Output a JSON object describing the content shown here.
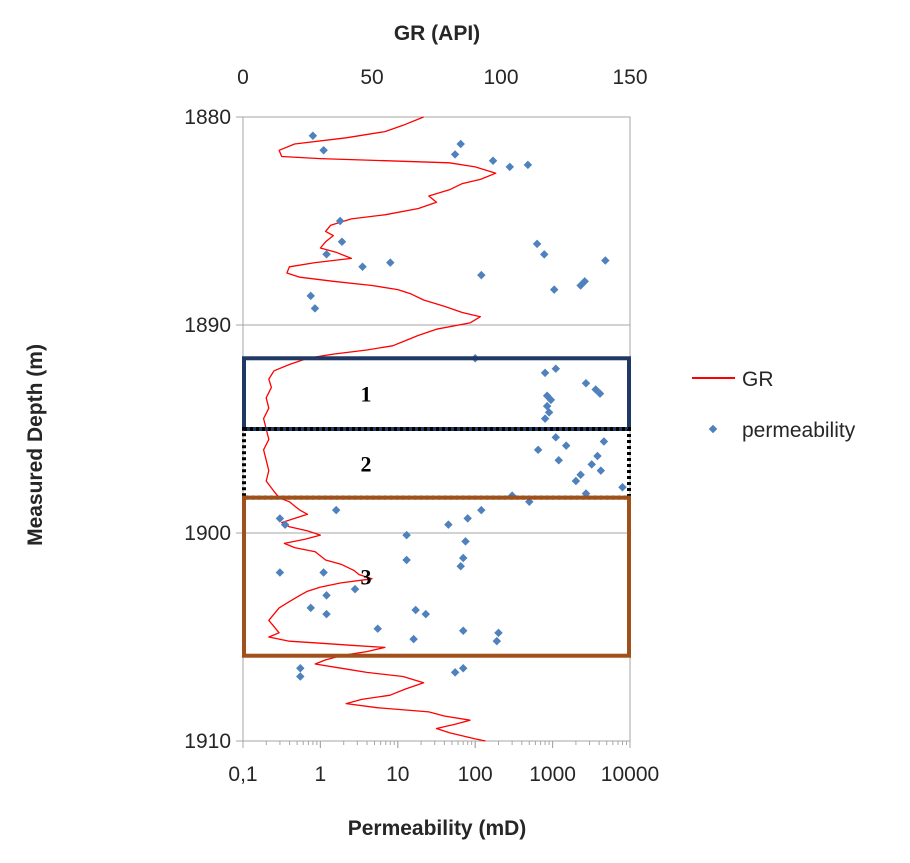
{
  "chart_data": {
    "type": "scatter",
    "title": "",
    "top_axis": {
      "label": "GR (API)",
      "ticks": [
        "0",
        "50",
        "100",
        "150"
      ],
      "range": [
        0,
        150
      ]
    },
    "bottom_axis": {
      "label": "Permeability (mD)",
      "scale": "log",
      "ticks": [
        "0,1",
        "1",
        "10",
        "100",
        "1000",
        "10000"
      ],
      "range": [
        0.1,
        10000
      ]
    },
    "y_axis": {
      "label": "Measured Depth (m)",
      "ticks": [
        "1880",
        "1890",
        "1900",
        "1910"
      ],
      "range": [
        1880,
        1910
      ],
      "inverted": true
    },
    "gridlines": "horizontal",
    "legend": {
      "position": "right",
      "items": [
        {
          "name": "GR",
          "color": "#ff0000",
          "marker": "line"
        },
        {
          "name": "permeability",
          "color": "#4f81bd",
          "marker": "diamond"
        }
      ]
    },
    "series": [
      {
        "name": "GR",
        "x_axis": "top",
        "color": "#ff0000",
        "points": [
          [
            70,
            1880.0
          ],
          [
            62,
            1880.4
          ],
          [
            55,
            1880.7
          ],
          [
            40,
            1881.0
          ],
          [
            20,
            1881.3
          ],
          [
            14,
            1881.6
          ],
          [
            15,
            1881.9
          ],
          [
            30,
            1882.0
          ],
          [
            55,
            1882.1
          ],
          [
            80,
            1882.2
          ],
          [
            90,
            1882.4
          ],
          [
            98,
            1882.7
          ],
          [
            92,
            1883.0
          ],
          [
            85,
            1883.2
          ],
          [
            80,
            1883.5
          ],
          [
            72,
            1883.8
          ],
          [
            75,
            1884.1
          ],
          [
            68,
            1884.4
          ],
          [
            55,
            1884.7
          ],
          [
            42,
            1884.9
          ],
          [
            34,
            1885.2
          ],
          [
            32,
            1885.5
          ],
          [
            35,
            1885.7
          ],
          [
            32,
            1886.0
          ],
          [
            30,
            1886.3
          ],
          [
            36,
            1886.5
          ],
          [
            42,
            1886.8
          ],
          [
            28,
            1887.0
          ],
          [
            18,
            1887.2
          ],
          [
            17,
            1887.5
          ],
          [
            22,
            1887.7
          ],
          [
            35,
            1887.9
          ],
          [
            50,
            1888.1
          ],
          [
            60,
            1888.3
          ],
          [
            65,
            1888.5
          ],
          [
            70,
            1888.8
          ],
          [
            78,
            1889.1
          ],
          [
            85,
            1889.4
          ],
          [
            92,
            1889.6
          ],
          [
            88,
            1889.9
          ],
          [
            75,
            1890.2
          ],
          [
            68,
            1890.5
          ],
          [
            62,
            1890.8
          ],
          [
            58,
            1891.0
          ],
          [
            48,
            1891.2
          ],
          [
            35,
            1891.4
          ],
          [
            25,
            1891.6
          ],
          [
            18,
            1891.9
          ],
          [
            12,
            1892.2
          ],
          [
            10,
            1892.6
          ],
          [
            11,
            1893.0
          ],
          [
            9,
            1893.5
          ],
          [
            10,
            1894.0
          ],
          [
            8,
            1894.5
          ],
          [
            9,
            1895.0
          ],
          [
            10,
            1895.5
          ],
          [
            8,
            1896.0
          ],
          [
            9,
            1896.5
          ],
          [
            10,
            1897.0
          ],
          [
            9,
            1897.5
          ],
          [
            12,
            1898.0
          ],
          [
            14,
            1898.3
          ],
          [
            18,
            1898.5
          ],
          [
            20,
            1898.7
          ],
          [
            22,
            1898.9
          ],
          [
            25,
            1899.1
          ],
          [
            20,
            1899.3
          ],
          [
            15,
            1899.5
          ],
          [
            18,
            1899.7
          ],
          [
            25,
            1899.9
          ],
          [
            30,
            1900.1
          ],
          [
            24,
            1900.3
          ],
          [
            16,
            1900.5
          ],
          [
            20,
            1900.7
          ],
          [
            28,
            1900.9
          ],
          [
            30,
            1901.1
          ],
          [
            32,
            1901.3
          ],
          [
            38,
            1901.5
          ],
          [
            43,
            1901.8
          ],
          [
            45,
            1902.0
          ],
          [
            50,
            1902.2
          ],
          [
            38,
            1902.4
          ],
          [
            30,
            1902.6
          ],
          [
            25,
            1902.8
          ],
          [
            22,
            1903.0
          ],
          [
            18,
            1903.3
          ],
          [
            14,
            1903.6
          ],
          [
            12,
            1903.9
          ],
          [
            10,
            1904.2
          ],
          [
            12,
            1904.5
          ],
          [
            14,
            1904.8
          ],
          [
            10,
            1905.0
          ],
          [
            18,
            1905.2
          ],
          [
            30,
            1905.3
          ],
          [
            42,
            1905.4
          ],
          [
            55,
            1905.5
          ],
          [
            48,
            1905.7
          ],
          [
            38,
            1905.9
          ],
          [
            32,
            1906.1
          ],
          [
            28,
            1906.3
          ],
          [
            38,
            1906.5
          ],
          [
            48,
            1906.7
          ],
          [
            62,
            1906.9
          ],
          [
            70,
            1907.2
          ],
          [
            63,
            1907.5
          ],
          [
            57,
            1907.8
          ],
          [
            46,
            1908.0
          ],
          [
            40,
            1908.2
          ],
          [
            52,
            1908.4
          ],
          [
            72,
            1908.6
          ],
          [
            78,
            1908.8
          ],
          [
            88,
            1909.0
          ],
          [
            82,
            1909.2
          ],
          [
            75,
            1909.4
          ],
          [
            80,
            1909.6
          ],
          [
            90,
            1909.9
          ],
          [
            94,
            1910.0
          ]
        ]
      },
      {
        "name": "permeability",
        "x_axis": "bottom",
        "color": "#4f81bd",
        "points": [
          [
            0.8,
            1880.9
          ],
          [
            1.1,
            1881.6
          ],
          [
            65,
            1881.3
          ],
          [
            55,
            1881.8
          ],
          [
            170,
            1882.1
          ],
          [
            480,
            1882.3
          ],
          [
            280,
            1882.4
          ],
          [
            1.8,
            1885.0
          ],
          [
            1.9,
            1886.0
          ],
          [
            1.2,
            1886.6
          ],
          [
            630,
            1886.1
          ],
          [
            780,
            1886.6
          ],
          [
            4800,
            1886.9
          ],
          [
            3.5,
            1887.2
          ],
          [
            8.0,
            1887.0
          ],
          [
            120,
            1887.6
          ],
          [
            2600,
            1887.9
          ],
          [
            2300,
            1888.1
          ],
          [
            1050,
            1888.3
          ],
          [
            0.75,
            1888.6
          ],
          [
            0.85,
            1889.2
          ],
          [
            100,
            1891.6
          ],
          [
            1100,
            1892.1
          ],
          [
            800,
            1892.3
          ],
          [
            2700,
            1892.8
          ],
          [
            3600,
            1893.1
          ],
          [
            4100,
            1893.3
          ],
          [
            850,
            1893.4
          ],
          [
            950,
            1893.6
          ],
          [
            850,
            1893.9
          ],
          [
            900,
            1894.2
          ],
          [
            800,
            1894.5
          ],
          [
            1100,
            1895.4
          ],
          [
            1500,
            1895.8
          ],
          [
            4600,
            1895.6
          ],
          [
            3800,
            1896.3
          ],
          [
            3200,
            1896.7
          ],
          [
            4200,
            1897.0
          ],
          [
            2300,
            1897.2
          ],
          [
            2000,
            1897.5
          ],
          [
            8000,
            1897.8
          ],
          [
            650,
            1896.0
          ],
          [
            1200,
            1896.5
          ],
          [
            2700,
            1898.1
          ],
          [
            300,
            1898.2
          ],
          [
            500,
            1898.5
          ],
          [
            120,
            1898.9
          ],
          [
            1.6,
            1898.9
          ],
          [
            0.3,
            1899.3
          ],
          [
            80,
            1899.3
          ],
          [
            45,
            1899.6
          ],
          [
            0.35,
            1899.6
          ],
          [
            13,
            1900.1
          ],
          [
            75,
            1900.4
          ],
          [
            70,
            1901.2
          ],
          [
            13,
            1901.3
          ],
          [
            65,
            1901.6
          ],
          [
            0.3,
            1901.9
          ],
          [
            1.1,
            1901.9
          ],
          [
            2.8,
            1902.7
          ],
          [
            1.2,
            1903.0
          ],
          [
            0.75,
            1903.6
          ],
          [
            1.2,
            1903.9
          ],
          [
            17,
            1903.7
          ],
          [
            23,
            1903.9
          ],
          [
            5.5,
            1904.6
          ],
          [
            70,
            1904.7
          ],
          [
            200,
            1904.8
          ],
          [
            16,
            1905.1
          ],
          [
            190,
            1905.2
          ],
          [
            0.55,
            1906.5
          ],
          [
            0.55,
            1906.9
          ],
          [
            70,
            1906.5
          ],
          [
            55,
            1906.7
          ]
        ]
      }
    ],
    "zones": [
      {
        "label": "1",
        "top": 1891.6,
        "bottom": 1895.0,
        "color": "#1f3864",
        "style": "solid"
      },
      {
        "label": "2",
        "top": 1895.0,
        "bottom": 1898.3,
        "color": "#000000",
        "style": "dotted"
      },
      {
        "label": "3",
        "top": 1898.3,
        "bottom": 1905.9,
        "color": "#a0501a",
        "style": "solid"
      }
    ]
  }
}
